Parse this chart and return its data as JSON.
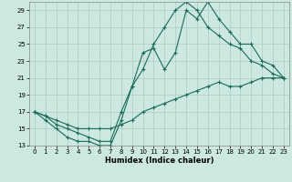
{
  "xlabel": "Humidex (Indice chaleur)",
  "background_color": "#cce8e0",
  "grid_color": "#aaccc4",
  "line_color": "#1a6b5a",
  "xlim": [
    -0.5,
    23.5
  ],
  "ylim": [
    13,
    30
  ],
  "yticks": [
    13,
    15,
    17,
    19,
    21,
    23,
    25,
    27,
    29
  ],
  "xticks": [
    0,
    1,
    2,
    3,
    4,
    5,
    6,
    7,
    8,
    9,
    10,
    11,
    12,
    13,
    14,
    15,
    16,
    17,
    18,
    19,
    20,
    21,
    22,
    23
  ],
  "line1_x": [
    0,
    1,
    2,
    3,
    4,
    5,
    6,
    7,
    8,
    9,
    10,
    11,
    12,
    13,
    14,
    15,
    16,
    17,
    18,
    19,
    20,
    21,
    22,
    23
  ],
  "line1_y": [
    17,
    16,
    15,
    14,
    13.5,
    13.5,
    13,
    13,
    16,
    20,
    24,
    24.5,
    22,
    24,
    29,
    28,
    30,
    28,
    26.5,
    25,
    25,
    23,
    22.5,
    21
  ],
  "line2_x": [
    0,
    1,
    2,
    3,
    4,
    5,
    6,
    7,
    8,
    9,
    10,
    11,
    12,
    13,
    14,
    15,
    16,
    17,
    18,
    19,
    20,
    21,
    22,
    23
  ],
  "line2_y": [
    17,
    16.5,
    15.5,
    15,
    14.5,
    14,
    13.5,
    13.5,
    17,
    20,
    22,
    25,
    27,
    29,
    30,
    29,
    27,
    26,
    25,
    24.5,
    23,
    22.5,
    21.5,
    21
  ],
  "line3_x": [
    0,
    1,
    2,
    3,
    4,
    5,
    6,
    7,
    8,
    9,
    10,
    11,
    12,
    13,
    14,
    15,
    16,
    17,
    18,
    19,
    20,
    21,
    22,
    23
  ],
  "line3_y": [
    17,
    16.5,
    16,
    15.5,
    15,
    15,
    15,
    15,
    15.5,
    16,
    17,
    17.5,
    18,
    18.5,
    19,
    19.5,
    20,
    20.5,
    20,
    20,
    20.5,
    21,
    21,
    21
  ]
}
